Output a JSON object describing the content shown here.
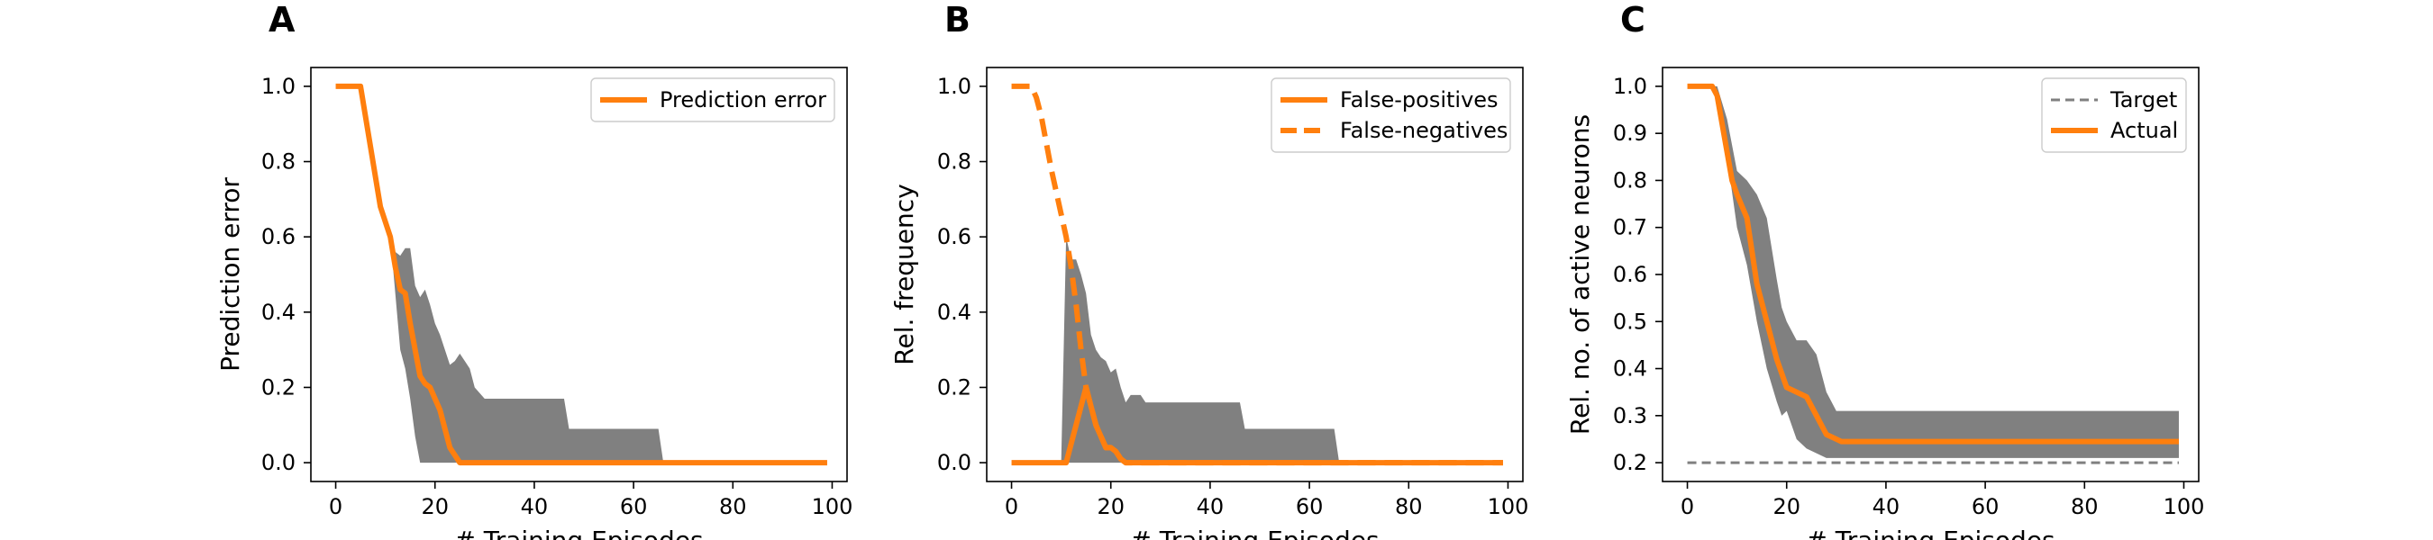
{
  "chart_data": [
    {
      "type": "line",
      "panel_label": "A",
      "xlabel": "# Training Episodes",
      "ylabel": "Prediction error",
      "xlim": [
        -5,
        103
      ],
      "ylim": [
        -0.05,
        1.05
      ],
      "xticks": [
        0,
        20,
        40,
        60,
        80,
        100
      ],
      "yticks": [
        0.0,
        0.2,
        0.4,
        0.6,
        0.8,
        1.0
      ],
      "ytick_format": 1,
      "legend_position": "top-right",
      "grid": false,
      "bands": [
        {
          "color": "#808080",
          "x": [
            0,
            5,
            9,
            11,
            12,
            13,
            14,
            15,
            16,
            17,
            18,
            19,
            20,
            21,
            22,
            23,
            24,
            25,
            26,
            27,
            28,
            30,
            33,
            40,
            46,
            47,
            55,
            60,
            65,
            66,
            70,
            80,
            90,
            99
          ],
          "lower": [
            1.0,
            1.0,
            0.68,
            0.6,
            0.45,
            0.3,
            0.25,
            0.17,
            0.07,
            0.0,
            0.0,
            0.0,
            0.0,
            0.0,
            0.0,
            0.0,
            0.0,
            0.0,
            0.0,
            0.0,
            0.0,
            0.0,
            0.0,
            0.0,
            0.0,
            0.0,
            0.0,
            0.0,
            0.0,
            0.0,
            0.0,
            0.0,
            0.0,
            0.0
          ],
          "upper": [
            1.0,
            1.0,
            0.68,
            0.6,
            0.56,
            0.55,
            0.57,
            0.57,
            0.47,
            0.44,
            0.46,
            0.42,
            0.37,
            0.34,
            0.3,
            0.26,
            0.27,
            0.29,
            0.27,
            0.25,
            0.2,
            0.17,
            0.17,
            0.17,
            0.17,
            0.09,
            0.09,
            0.09,
            0.09,
            0.0,
            0.0,
            0.0,
            0.0,
            0.0
          ]
        }
      ],
      "series": [
        {
          "name": "Prediction error",
          "color": "#ff7f0e",
          "dash": "solid",
          "x": [
            0,
            5,
            9,
            11,
            12,
            13,
            14,
            15,
            16,
            17,
            18,
            19,
            20,
            21,
            22,
            23,
            24,
            25,
            26,
            27,
            30,
            40,
            60,
            80,
            99
          ],
          "y": [
            1.0,
            1.0,
            0.68,
            0.6,
            0.52,
            0.46,
            0.45,
            0.37,
            0.3,
            0.23,
            0.21,
            0.2,
            0.17,
            0.14,
            0.09,
            0.04,
            0.02,
            0.0,
            0.0,
            0.0,
            0.0,
            0.0,
            0.0,
            0.0,
            0.0
          ]
        }
      ]
    },
    {
      "type": "line",
      "panel_label": "B",
      "xlabel": "# Training Episodes",
      "ylabel": "Rel. frequency",
      "xlim": [
        -5,
        103
      ],
      "ylim": [
        -0.05,
        1.05
      ],
      "xticks": [
        0,
        20,
        40,
        60,
        80,
        100
      ],
      "yticks": [
        0.0,
        0.2,
        0.4,
        0.6,
        0.8,
        1.0
      ],
      "ytick_format": 1,
      "legend_position": "top-right",
      "grid": false,
      "bands": [
        {
          "color": "#808080",
          "x": [
            10,
            11,
            12,
            13,
            14,
            15,
            16,
            17,
            18,
            19,
            20,
            21,
            22,
            23,
            24,
            25,
            26,
            27,
            28,
            30,
            33,
            40,
            46,
            47,
            55,
            60,
            65,
            66,
            99
          ],
          "lower": [
            0.0,
            0.0,
            0.0,
            0.0,
            0.0,
            0.0,
            0.0,
            0.0,
            0.0,
            0.0,
            0.0,
            0.0,
            0.0,
            0.0,
            0.0,
            0.0,
            0.0,
            0.0,
            0.0,
            0.0,
            0.0,
            0.0,
            0.0,
            0.0,
            0.0,
            0.0,
            0.0,
            0.0,
            0.0
          ],
          "upper": [
            0.0,
            0.6,
            0.54,
            0.54,
            0.5,
            0.45,
            0.34,
            0.3,
            0.28,
            0.27,
            0.24,
            0.25,
            0.2,
            0.16,
            0.18,
            0.18,
            0.18,
            0.16,
            0.16,
            0.16,
            0.16,
            0.16,
            0.16,
            0.09,
            0.09,
            0.09,
            0.09,
            0.0,
            0.0
          ]
        }
      ],
      "series": [
        {
          "name": "False-positives",
          "color": "#ff7f0e",
          "dash": "solid",
          "x": [
            0,
            11,
            15,
            16,
            17,
            18,
            19,
            20,
            21,
            22,
            23,
            24,
            30,
            40,
            60,
            80,
            99
          ],
          "y": [
            0.0,
            0.0,
            0.2,
            0.15,
            0.1,
            0.07,
            0.04,
            0.04,
            0.03,
            0.01,
            0.0,
            0.0,
            0.0,
            0.0,
            0.0,
            0.0,
            0.0
          ]
        },
        {
          "name": "False-negatives",
          "color": "#ff7f0e",
          "dash": "dashed",
          "x": [
            0,
            4,
            5,
            6,
            7,
            8,
            9,
            10,
            11,
            12,
            13,
            14,
            15,
            16,
            17,
            18,
            19,
            20,
            21,
            22,
            23,
            24,
            30,
            40,
            60,
            80,
            99
          ],
          "y": [
            1.0,
            1.0,
            0.97,
            0.92,
            0.85,
            0.78,
            0.72,
            0.66,
            0.6,
            0.52,
            0.42,
            0.3,
            0.2,
            0.15,
            0.1,
            0.07,
            0.04,
            0.04,
            0.03,
            0.01,
            0.0,
            0.0,
            0.0,
            0.0,
            0.0,
            0.0,
            0.0
          ]
        }
      ]
    },
    {
      "type": "line",
      "panel_label": "C",
      "xlabel": "# Training Episodes",
      "ylabel": "Rel. no. of active neurons",
      "xlim": [
        -5,
        103
      ],
      "ylim": [
        0.16,
        1.04
      ],
      "xticks": [
        0,
        20,
        40,
        60,
        80,
        100
      ],
      "yticks": [
        0.2,
        0.3,
        0.4,
        0.5,
        0.6,
        0.7,
        0.8,
        0.9,
        1.0
      ],
      "ytick_format": 1,
      "legend_position": "top-right",
      "grid": false,
      "bands": [
        {
          "color": "#808080",
          "x": [
            0,
            5,
            6,
            8,
            10,
            12,
            14,
            16,
            18,
            19,
            20,
            22,
            24,
            26,
            28,
            30,
            32,
            40,
            60,
            80,
            99
          ],
          "lower": [
            1.0,
            1.0,
            0.98,
            0.85,
            0.7,
            0.62,
            0.5,
            0.4,
            0.33,
            0.3,
            0.31,
            0.25,
            0.23,
            0.22,
            0.21,
            0.21,
            0.21,
            0.21,
            0.21,
            0.21,
            0.21
          ],
          "upper": [
            1.0,
            1.0,
            1.0,
            0.93,
            0.82,
            0.8,
            0.77,
            0.72,
            0.59,
            0.53,
            0.5,
            0.46,
            0.46,
            0.43,
            0.35,
            0.31,
            0.31,
            0.31,
            0.31,
            0.31,
            0.31
          ]
        }
      ],
      "series": [
        {
          "name": "Target",
          "color": "#808080",
          "dash": "dashed",
          "x": [
            0,
            99
          ],
          "y": [
            0.2,
            0.2
          ]
        },
        {
          "name": "Actual",
          "color": "#ff7f0e",
          "dash": "solid",
          "x": [
            0,
            5,
            6,
            7,
            8,
            9,
            10,
            12,
            14,
            16,
            18,
            20,
            22,
            24,
            26,
            28,
            30,
            31,
            40,
            60,
            80,
            99
          ],
          "y": [
            1.0,
            1.0,
            0.98,
            0.92,
            0.86,
            0.8,
            0.77,
            0.72,
            0.58,
            0.5,
            0.42,
            0.36,
            0.35,
            0.34,
            0.3,
            0.26,
            0.25,
            0.245,
            0.245,
            0.245,
            0.245,
            0.245
          ]
        }
      ]
    }
  ]
}
